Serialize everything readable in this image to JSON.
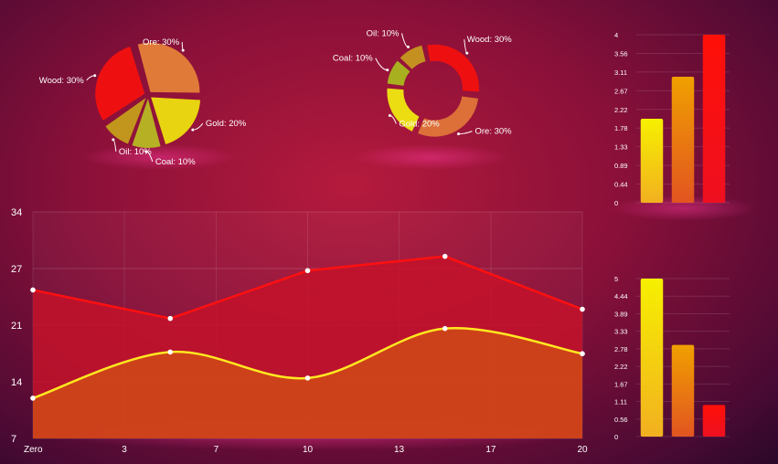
{
  "chart_data": [
    {
      "type": "pie",
      "title": "",
      "slices": [
        {
          "label": "Ore: 30%",
          "value": 30,
          "color": "#e07a38"
        },
        {
          "label": "Gold: 20%",
          "value": 20,
          "color": "#e8d410"
        },
        {
          "label": "Coal: 10%",
          "value": 10,
          "color": "#b6b025"
        },
        {
          "label": "Oil: 10%",
          "value": 10,
          "color": "#c2961c"
        },
        {
          "label": "Wood: 30%",
          "value": 30,
          "color": "#ee1010"
        }
      ]
    },
    {
      "type": "pie",
      "title": "",
      "variant": "donut",
      "slices": [
        {
          "label": "Wood: 30%",
          "value": 30,
          "color": "#ee1010"
        },
        {
          "label": "Ore: 30%",
          "value": 30,
          "color": "#dc7038"
        },
        {
          "label": "Gold: 20%",
          "value": 20,
          "color": "#ecdc12"
        },
        {
          "label": "Coal: 10%",
          "value": 10,
          "color": "#a8b020"
        },
        {
          "label": "Oil: 10%",
          "value": 10,
          "color": "#c49020"
        }
      ]
    },
    {
      "type": "bar",
      "title": "",
      "values": [
        2,
        3,
        4
      ],
      "colors": [
        [
          "#f6f000",
          "#f2b020"
        ],
        [
          "#f0a000",
          "#e25420"
        ],
        [
          "#ff1008",
          "#ee1020"
        ]
      ],
      "ylim": [
        0,
        4
      ],
      "yticks": [
        "0",
        "0.44",
        "0.89",
        "1.33",
        "1.78",
        "2.22",
        "2.67",
        "3.11",
        "3.56",
        "4"
      ]
    },
    {
      "type": "bar",
      "title": "",
      "values": [
        5,
        2.9,
        1.0
      ],
      "colors": [
        [
          "#f6f000",
          "#f2b020"
        ],
        [
          "#f0a000",
          "#e25420"
        ],
        [
          "#ff1008",
          "#ee1020"
        ]
      ],
      "ylim": [
        0,
        5
      ],
      "yticks": [
        "0",
        "0.56",
        "1.11",
        "1.67",
        "2.22",
        "2.78",
        "3.33",
        "3.89",
        "4.44",
        "5"
      ]
    },
    {
      "type": "area",
      "title": "",
      "xlim": [
        0,
        20
      ],
      "ylim": [
        7,
        34
      ],
      "xticks": [
        {
          "value": 0,
          "label": "Zero"
        },
        {
          "value": 3.33,
          "label": "3"
        },
        {
          "value": 6.67,
          "label": "7"
        },
        {
          "value": 10,
          "label": "10"
        },
        {
          "value": 13.33,
          "label": "13"
        },
        {
          "value": 16.67,
          "label": "17"
        },
        {
          "value": 20,
          "label": "20"
        }
      ],
      "yticks": [
        {
          "value": 7,
          "label": "7"
        },
        {
          "value": 13.75,
          "label": "14"
        },
        {
          "value": 20.5,
          "label": "21"
        },
        {
          "value": 27.25,
          "label": "27"
        },
        {
          "value": 34,
          "label": "34"
        }
      ],
      "series": [
        {
          "x": [
            0,
            5,
            10,
            15,
            20
          ],
          "y": [
            24.7,
            21.3,
            27.0,
            28.7,
            22.4
          ],
          "color": "#ff1010",
          "fill": "#c4122a",
          "smooth": false
        },
        {
          "x": [
            0,
            5,
            10,
            15,
            20
          ],
          "y": [
            11.8,
            17.3,
            14.2,
            20.1,
            17.1
          ],
          "color": "#ffe820",
          "fill": "#d04a18",
          "smooth": true
        }
      ]
    }
  ]
}
